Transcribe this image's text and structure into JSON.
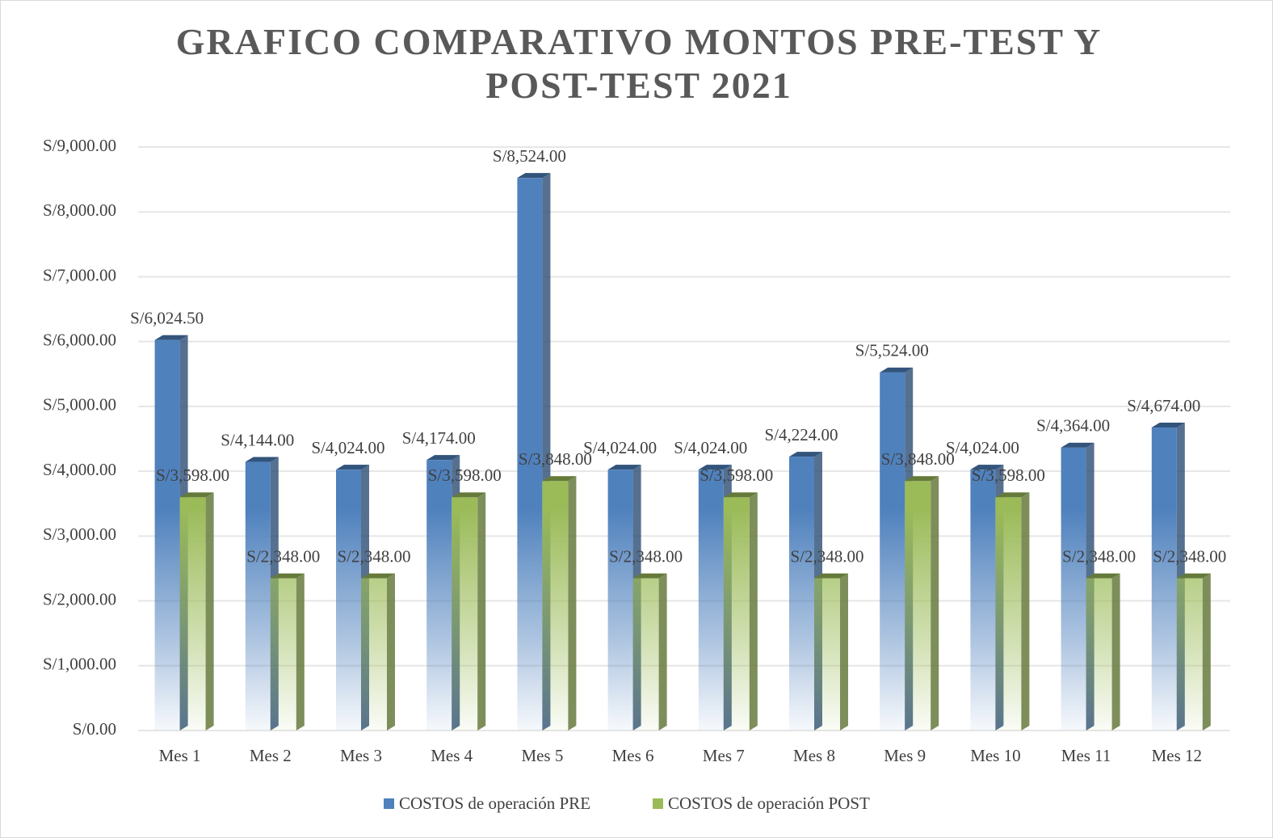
{
  "chart_data": {
    "type": "bar",
    "title": "GRAFICO COMPARATIVO MONTOS PRE-TEST Y POST-TEST 2021",
    "categories": [
      "Mes 1",
      "Mes 2",
      "Mes 3",
      "Mes 4",
      "Mes 5",
      "Mes 6",
      "Mes 7",
      "Mes 8",
      "Mes 9",
      "Mes 10",
      "Mes 11",
      "Mes 12"
    ],
    "series": [
      {
        "name": "COSTOS de operación PRE",
        "color": "#4f81bd",
        "values": [
          6024.5,
          4144,
          4024,
          4174,
          8524,
          4024,
          4024,
          4224,
          5524,
          4024,
          4364,
          4674
        ],
        "value_labels": [
          "S/6,024.50",
          "S/4,144.00",
          "S/4,024.00",
          "S/4,174.00",
          "S/8,524.00",
          "S/4,024.00",
          "S/4,024.00",
          "S/4,224.00",
          "S/5,524.00",
          "S/4,024.00",
          "S/4,364.00",
          "S/4,674.00"
        ]
      },
      {
        "name": "COSTOS de operación POST",
        "color": "#9bbb59",
        "values": [
          3598,
          2348,
          2348,
          3598,
          3848,
          2348,
          3598,
          2348,
          3848,
          3598,
          2348,
          2348
        ],
        "value_labels": [
          "S/3,598.00",
          "S/2,348.00",
          "S/2,348.00",
          "S/3,598.00",
          "S/3,848.00",
          "S/2,348.00",
          "S/3,598.00",
          "S/2,348.00",
          "S/3,848.00",
          "S/3,598.00",
          "S/2,348.00",
          "S/2,348.00"
        ]
      }
    ],
    "ylim": [
      0,
      9000
    ],
    "yticks": [
      {
        "value": 0,
        "label": "S/0.00"
      },
      {
        "value": 1000,
        "label": "S/1,000.00"
      },
      {
        "value": 2000,
        "label": "S/2,000.00"
      },
      {
        "value": 3000,
        "label": "S/3,000.00"
      },
      {
        "value": 4000,
        "label": "S/4,000.00"
      },
      {
        "value": 5000,
        "label": "S/5,000.00"
      },
      {
        "value": 6000,
        "label": "S/6,000.00"
      },
      {
        "value": 7000,
        "label": "S/7,000.00"
      },
      {
        "value": 8000,
        "label": "S/8,000.00"
      },
      {
        "value": 9000,
        "label": "S/9,000.00"
      }
    ],
    "grid": true,
    "legend": "bottom"
  }
}
